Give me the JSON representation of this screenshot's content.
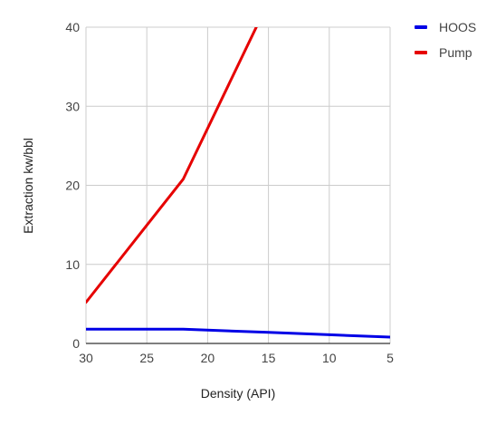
{
  "chart_data": {
    "type": "line",
    "title": "",
    "xlabel": "Density (API)",
    "ylabel": "Extraction kw/bbl",
    "x_reversed": true,
    "xlim": [
      30,
      5
    ],
    "ylim": [
      0,
      40
    ],
    "x_ticks": [
      30,
      25,
      20,
      15,
      10,
      5
    ],
    "y_ticks": [
      0,
      10,
      20,
      30,
      40
    ],
    "grid": true,
    "legend_position": "top-right",
    "series": [
      {
        "name": "HOOS",
        "color": "#0000e6",
        "points": [
          [
            30,
            1.8
          ],
          [
            22,
            1.8
          ],
          [
            15,
            1.4
          ],
          [
            10,
            1.1
          ],
          [
            5,
            0.8
          ]
        ]
      },
      {
        "name": "Pump",
        "color": "#e60000",
        "points": [
          [
            30,
            5.2
          ],
          [
            22,
            20.8
          ],
          [
            16,
            40
          ]
        ]
      }
    ]
  }
}
